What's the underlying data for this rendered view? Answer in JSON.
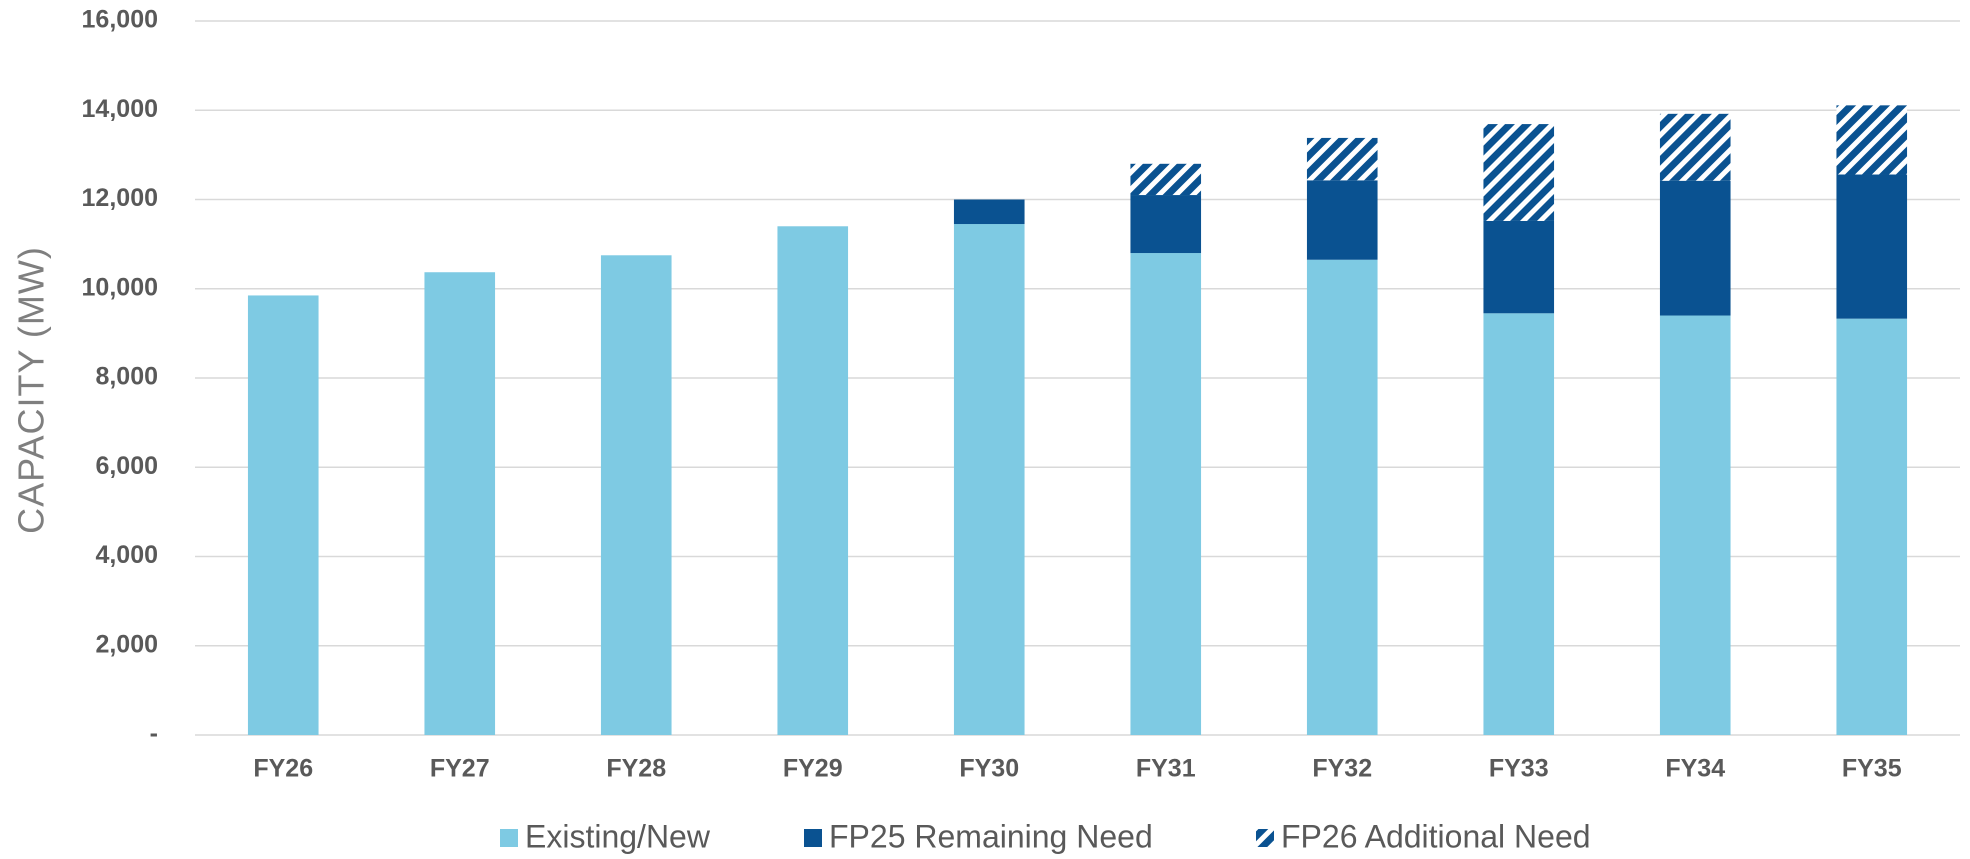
{
  "chart_data": {
    "type": "bar",
    "stacked": true,
    "y_label": "CAPACITY (MW)",
    "categories": [
      "FY26",
      "FY27",
      "FY28",
      "FY29",
      "FY30",
      "FY31",
      "FY32",
      "FY33",
      "FY34",
      "FY35"
    ],
    "series": [
      {
        "name": "Existing/New",
        "color": "#7ecae3",
        "values": [
          9850,
          10370,
          10750,
          11400,
          11450,
          10800,
          10650,
          9450,
          9400,
          9330
        ]
      },
      {
        "name": "FP25 Remaining Need",
        "color": "#0a5291",
        "values": [
          0,
          0,
          0,
          0,
          550,
          1300,
          1780,
          2070,
          3020,
          3230
        ]
      },
      {
        "name": "FP26 Additional Need",
        "color": "#0a5291",
        "hatch": true,
        "values": [
          0,
          0,
          0,
          0,
          0,
          700,
          950,
          2170,
          1500,
          1550
        ]
      }
    ],
    "ylim": [
      0,
      16000
    ],
    "yticks": [
      {
        "value": 0,
        "label": "-"
      },
      {
        "value": 2000,
        "label": "2,000"
      },
      {
        "value": 4000,
        "label": "4,000"
      },
      {
        "value": 6000,
        "label": "6,000"
      },
      {
        "value": 8000,
        "label": "8,000"
      },
      {
        "value": 10000,
        "label": "10,000"
      },
      {
        "value": 12000,
        "label": "12,000"
      },
      {
        "value": 14000,
        "label": "14,000"
      },
      {
        "value": 16000,
        "label": "16,000"
      }
    ],
    "grid": true,
    "legend": "bottom"
  }
}
